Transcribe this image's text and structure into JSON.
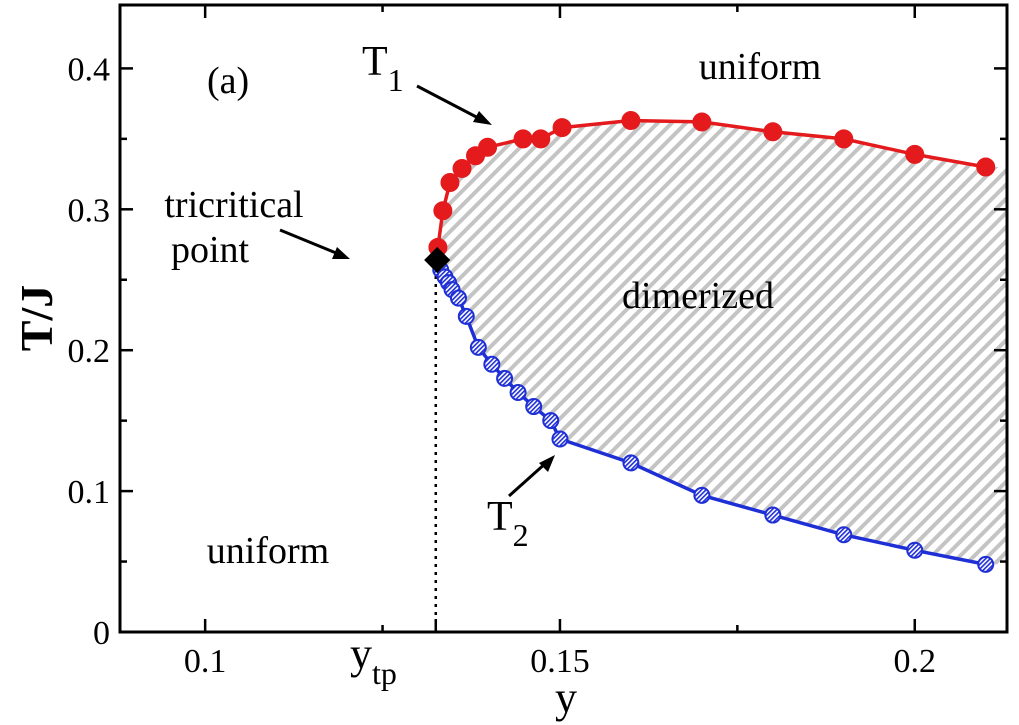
{
  "colors": {
    "t1": "#e41a1c",
    "t2": "#1f2fd6",
    "hatch": "#c4c4c4",
    "axis": "#000000",
    "tricritical": "#000000"
  },
  "chart_data": {
    "type": "line",
    "panel_label": "(a)",
    "xlabel": "y",
    "ylabel": "T/J",
    "xlim": [
      0.088,
      0.213
    ],
    "ylim": [
      0,
      0.445
    ],
    "xticks": [
      0.1,
      0.15,
      0.2
    ],
    "xtick_labels": [
      "0.1",
      "0.15",
      "0.2"
    ],
    "xminor": [
      0.125,
      0.175
    ],
    "yticks": [
      0,
      0.1,
      0.2,
      0.3,
      0.4
    ],
    "ytick_labels": [
      "0",
      "0.1",
      "0.2",
      "0.3",
      "0.4"
    ],
    "yminor": [
      0.05,
      0.15,
      0.25,
      0.35
    ],
    "special_xtick": {
      "x": 0.1325,
      "label_main": "y",
      "label_sub": "tp"
    },
    "series": [
      {
        "name": "T",
        "name_sub": "1",
        "marker": "filled-circle",
        "x": [
          0.1328,
          0.1335,
          0.1345,
          0.1362,
          0.1381,
          0.1398,
          0.1448,
          0.1473,
          0.1503,
          0.16,
          0.17,
          0.18,
          0.19,
          0.2,
          0.21
        ],
        "y": [
          0.273,
          0.299,
          0.319,
          0.329,
          0.338,
          0.344,
          0.35,
          0.35,
          0.358,
          0.363,
          0.362,
          0.355,
          0.35,
          0.339,
          0.33
        ]
      },
      {
        "name": "T",
        "name_sub": "2",
        "marker": "hatched-circle",
        "x": [
          0.1332,
          0.1338,
          0.1343,
          0.1348,
          0.1357,
          0.1368,
          0.1385,
          0.1404,
          0.1422,
          0.1441,
          0.1463,
          0.1487,
          0.15,
          0.16,
          0.17,
          0.18,
          0.19,
          0.2,
          0.21
        ],
        "y": [
          0.257,
          0.252,
          0.248,
          0.243,
          0.237,
          0.224,
          0.202,
          0.19,
          0.18,
          0.17,
          0.16,
          0.15,
          0.137,
          0.12,
          0.097,
          0.083,
          0.069,
          0.058,
          0.048
        ]
      }
    ],
    "tricritical_point": {
      "x": 0.1327,
      "y": 0.264
    },
    "annotations": {
      "tricritical_line1": "tricritical",
      "tricritical_line2": "point",
      "region_dimerized": "dimerized",
      "region_uniform_top": "uniform",
      "region_uniform_bottom": "uniform"
    },
    "grid": false
  }
}
